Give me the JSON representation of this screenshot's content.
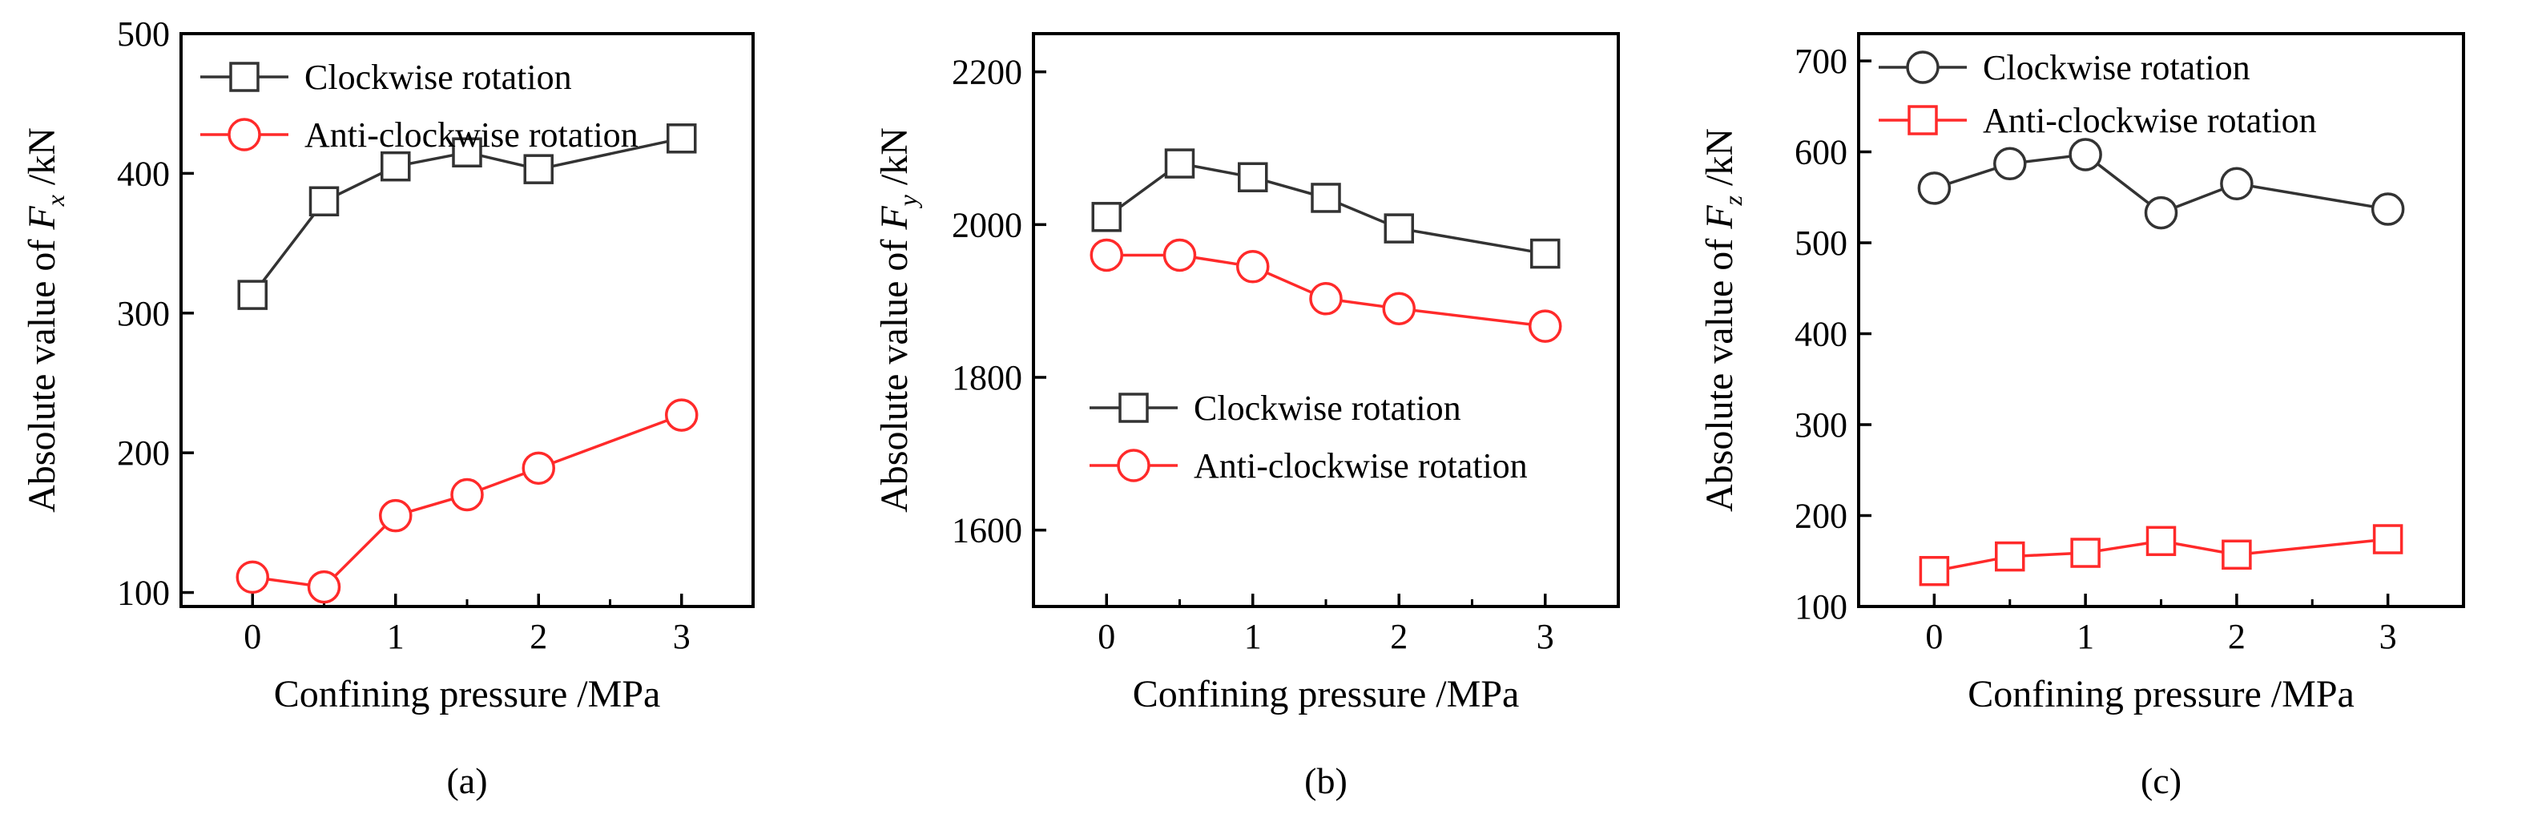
{
  "chart_data": [
    {
      "type": "line",
      "panel_label": "(a)",
      "xlabel": "Confining pressure /MPa",
      "ylabel_prefix": "Absolute  value of ",
      "ylabel_symbol": "F",
      "ylabel_subscript": "x",
      "ylabel_suffix": " /kN",
      "xlim": [
        -0.5,
        3.5
      ],
      "ylim": [
        90,
        500
      ],
      "xticks": [
        0,
        1,
        2,
        3
      ],
      "yticks": [
        100,
        200,
        300,
        400,
        500
      ],
      "legend_position": "top-left",
      "series": [
        {
          "name": "Clockwise rotation",
          "marker": "square",
          "color": "#333333",
          "x": [
            0,
            0.5,
            1,
            1.5,
            2,
            3
          ],
          "y": [
            313,
            380,
            405,
            415,
            403,
            425
          ]
        },
        {
          "name": "Anti-clockwise rotation",
          "marker": "circle",
          "color": "#ff2a2a",
          "x": [
            0,
            0.5,
            1,
            1.5,
            2,
            3
          ],
          "y": [
            111,
            104,
            155,
            170,
            189,
            227
          ]
        }
      ]
    },
    {
      "type": "line",
      "panel_label": "(b)",
      "xlabel": "Confining pressure /MPa",
      "ylabel_prefix": "Absolute  value of ",
      "ylabel_symbol": "F",
      "ylabel_subscript": "y",
      "ylabel_suffix": " /kN",
      "xlim": [
        -0.5,
        3.5
      ],
      "ylim": [
        1500,
        2250
      ],
      "xticks": [
        0,
        1,
        2,
        3
      ],
      "yticks": [
        1600,
        1800,
        2000,
        2200
      ],
      "legend_position": "center-right",
      "series": [
        {
          "name": "Clockwise rotation",
          "marker": "square",
          "color": "#333333",
          "x": [
            0,
            0.5,
            1,
            1.5,
            2,
            3
          ],
          "y": [
            2010,
            2080,
            2062,
            2035,
            1995,
            1962
          ]
        },
        {
          "name": "Anti-clockwise rotation",
          "marker": "circle",
          "color": "#ff2a2a",
          "x": [
            0,
            0.5,
            1,
            1.5,
            2,
            3
          ],
          "y": [
            1960,
            1960,
            1945,
            1903,
            1890,
            1867
          ]
        }
      ]
    },
    {
      "type": "line",
      "panel_label": "(c)",
      "xlabel": "Confining pressure /MPa",
      "ylabel_prefix": "Absolute  value of ",
      "ylabel_symbol": "F",
      "ylabel_subscript": "z",
      "ylabel_suffix": " /kN",
      "xlim": [
        -0.5,
        3.5
      ],
      "ylim": [
        100,
        730
      ],
      "xticks": [
        0,
        1,
        2,
        3
      ],
      "yticks": [
        100,
        200,
        300,
        400,
        500,
        600,
        700
      ],
      "legend_position": "top-left",
      "series": [
        {
          "name": "Clockwise rotation",
          "marker": "circle",
          "color": "#333333",
          "x": [
            0,
            0.5,
            1,
            1.5,
            2,
            3
          ],
          "y": [
            560,
            587,
            597,
            533,
            565,
            537
          ]
        },
        {
          "name": "Anti-clockwise rotation",
          "marker": "square",
          "color": "#ff2a2a",
          "x": [
            0,
            0.5,
            1,
            1.5,
            2,
            3
          ],
          "y": [
            139,
            155,
            159,
            172,
            157,
            174
          ]
        }
      ]
    }
  ]
}
